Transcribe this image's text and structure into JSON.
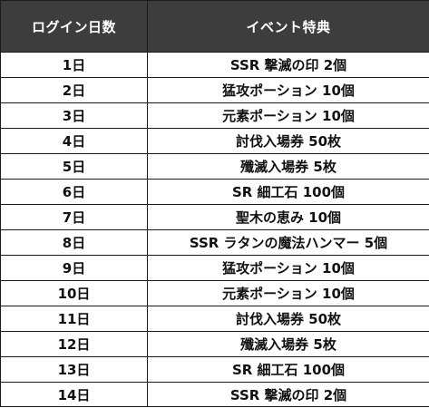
{
  "table": {
    "headers": [
      "ログイン日数",
      "イベント特典"
    ],
    "rows": [
      {
        "day": "1日",
        "reward": "SSR 撃滅の印 2個"
      },
      {
        "day": "2日",
        "reward": "猛攻ポーション 10個"
      },
      {
        "day": "3日",
        "reward": "元素ポーション 10個"
      },
      {
        "day": "4日",
        "reward": "討伐入場券 50枚"
      },
      {
        "day": "5日",
        "reward": "殲滅入場券 5枚"
      },
      {
        "day": "6日",
        "reward": "SR 細工石 100個"
      },
      {
        "day": "7日",
        "reward": "聖木の恵み 10個"
      },
      {
        "day": "8日",
        "reward": "SSR ラタンの魔法ハンマー 5個"
      },
      {
        "day": "9日",
        "reward": "猛攻ポーション 10個"
      },
      {
        "day": "10日",
        "reward": "元素ポーション 10個"
      },
      {
        "day": "11日",
        "reward": "討伐入場券 50枚"
      },
      {
        "day": "12日",
        "reward": "殲滅入場券 5枚"
      },
      {
        "day": "13日",
        "reward": "SR 細工石 100個"
      },
      {
        "day": "14日",
        "reward": "SSR 撃滅の印 2個"
      }
    ]
  },
  "colors": {
    "header_bg": "#3d3d3d",
    "header_text": "#ffffff",
    "border": "#1a1a1a"
  }
}
